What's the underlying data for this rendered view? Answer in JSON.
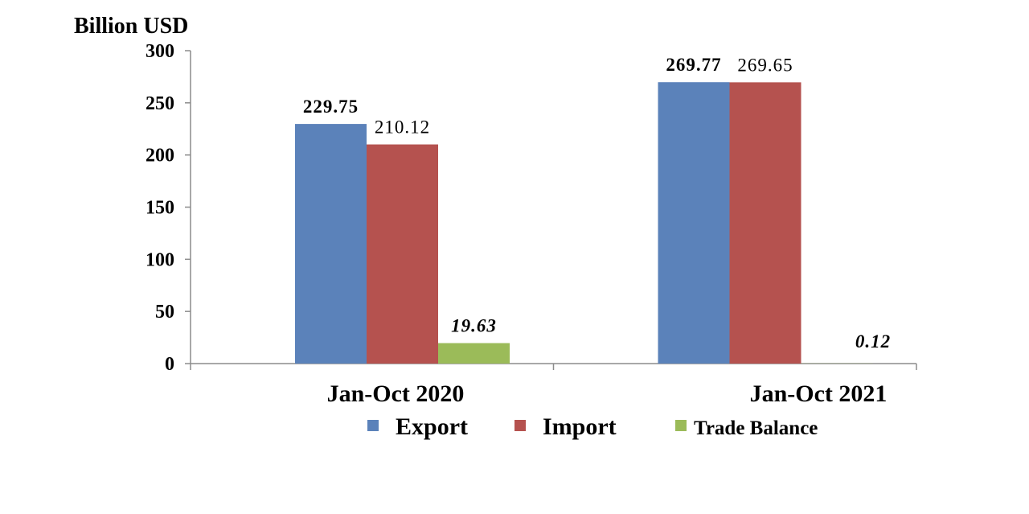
{
  "chart_data": {
    "type": "bar",
    "unit_label": "Billion USD",
    "categories": [
      "Jan-Oct 2020",
      "Jan-Oct 2021"
    ],
    "ylim": [
      0,
      300
    ],
    "yticks": [
      "0",
      "50",
      "100",
      "150",
      "200",
      "250",
      "300"
    ],
    "grid": false,
    "legend_position": "bottom",
    "series": [
      {
        "name": "Export",
        "color": "#5b82ba",
        "values": [
          229.75,
          269.77
        ],
        "labels": [
          "229.75",
          "269.77"
        ]
      },
      {
        "name": "Import",
        "color": "#b5524f",
        "values": [
          210.12,
          269.65
        ],
        "labels": [
          "210.12",
          "269.65"
        ]
      },
      {
        "name": "Trade Balance",
        "color": "#9bbb59",
        "values": [
          19.63,
          0.12
        ],
        "labels": [
          "19.63",
          "0.12"
        ]
      }
    ]
  }
}
